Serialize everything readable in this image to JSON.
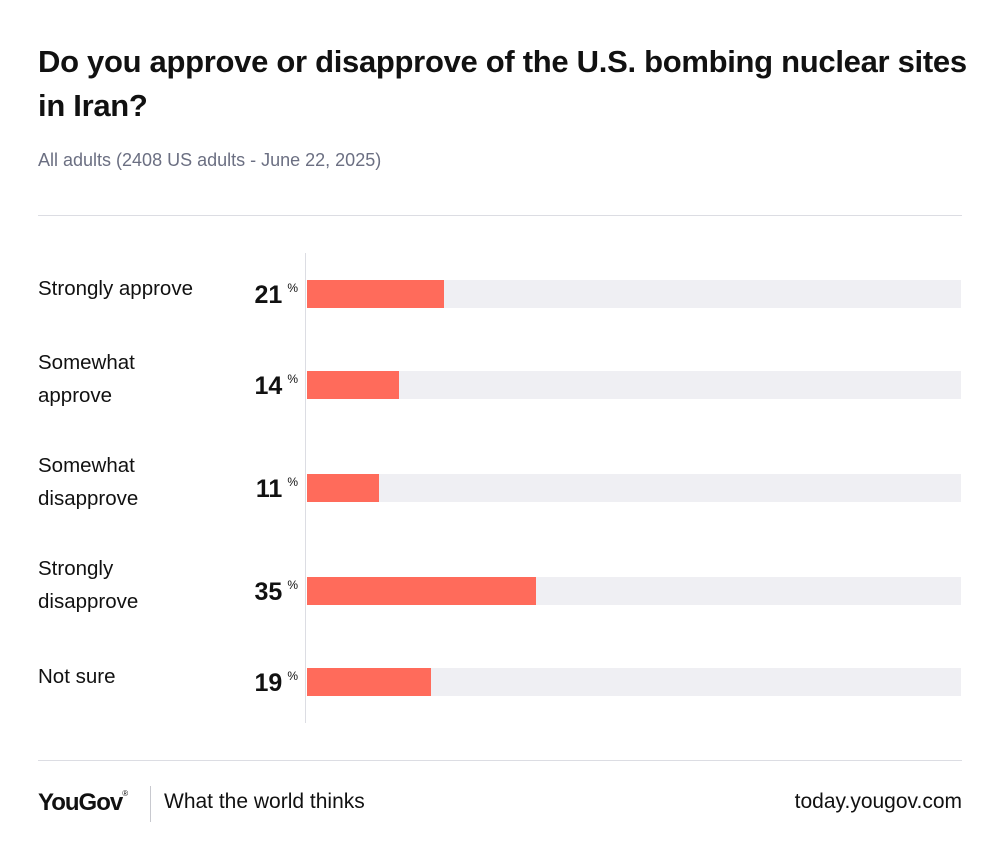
{
  "chart_data": {
    "type": "bar",
    "orientation": "horizontal",
    "title": "Do you approve or disapprove of the U.S. bombing nuclear sites in Iran?",
    "subtitle": "All adults (2408 US adults - June 22, 2025)",
    "categories": [
      [
        "Strongly approve"
      ],
      [
        "Somewhat",
        "approve"
      ],
      [
        "Somewhat",
        "disapprove"
      ],
      [
        "Strongly",
        "disapprove"
      ],
      [
        "Not sure"
      ]
    ],
    "values": [
      21,
      14,
      11,
      35,
      19
    ],
    "unit": "%",
    "xlim": [
      0,
      100
    ],
    "bar_color": "#ff6b5b",
    "track_color": "#efeff3"
  },
  "footer": {
    "brand": "YouGov",
    "brand_mark": "®",
    "tagline": "What the world thinks",
    "site": "today.yougov.com"
  }
}
